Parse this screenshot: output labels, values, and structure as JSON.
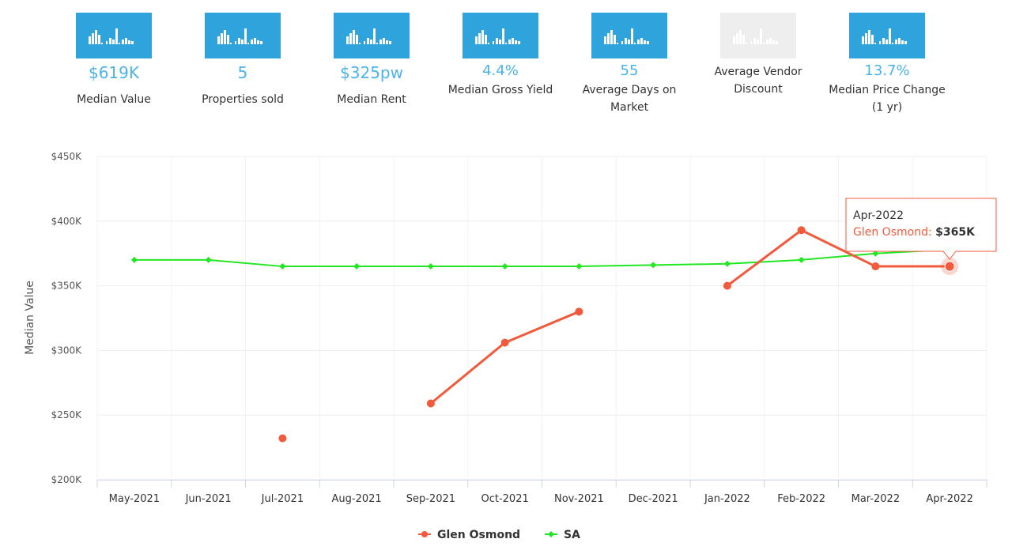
{
  "stats": [
    {
      "value": "$619K",
      "label": "Median Value",
      "icon": "bar-chart-icon",
      "enabled": true
    },
    {
      "value": "5",
      "label": "Properties sold",
      "icon": "bar-chart-icon",
      "enabled": true
    },
    {
      "value": "$325pw",
      "label": "Median Rent",
      "icon": "bar-chart-icon",
      "enabled": true
    },
    {
      "value": "4.4%",
      "label": "Median Gross Yield",
      "icon": "bar-chart-icon",
      "enabled": true
    },
    {
      "value": "55",
      "label": "Average Days on Market",
      "icon": "bar-chart-icon",
      "enabled": true
    },
    {
      "value": "",
      "label": "Average Vendor Discount",
      "icon": "bar-chart-icon",
      "enabled": false
    },
    {
      "value": "13.7%",
      "label": "Median Price Change (1 yr)",
      "icon": "bar-chart-icon",
      "enabled": true
    }
  ],
  "colors": {
    "accent": "#2ea3dc",
    "value_text": "#4cb3e6",
    "glen_osmond": "#f15a3c",
    "sa": "#22e622"
  },
  "chart_data": {
    "type": "line",
    "categories": [
      "May-2021",
      "Jun-2021",
      "Jul-2021",
      "Aug-2021",
      "Sep-2021",
      "Oct-2021",
      "Nov-2021",
      "Dec-2021",
      "Jan-2022",
      "Feb-2022",
      "Mar-2022",
      "Apr-2022"
    ],
    "series": [
      {
        "name": "Glen Osmond",
        "values": [
          null,
          null,
          232000,
          null,
          259000,
          306000,
          330000,
          null,
          350000,
          393000,
          365000,
          365000
        ]
      },
      {
        "name": "SA",
        "values": [
          370000,
          370000,
          365000,
          365000,
          365000,
          365000,
          365000,
          366000,
          367000,
          370000,
          375000,
          378000
        ]
      }
    ],
    "ylabel": "Median Value",
    "ylim": [
      200000,
      450000
    ],
    "yticks": [
      "$200K",
      "$250K",
      "$300K",
      "$350K",
      "$400K",
      "$450K"
    ],
    "legend_position": "bottom-center",
    "grid": true,
    "tooltip": {
      "title": "Apr-2022",
      "series": "Glen Osmond",
      "value": "$365K"
    }
  }
}
